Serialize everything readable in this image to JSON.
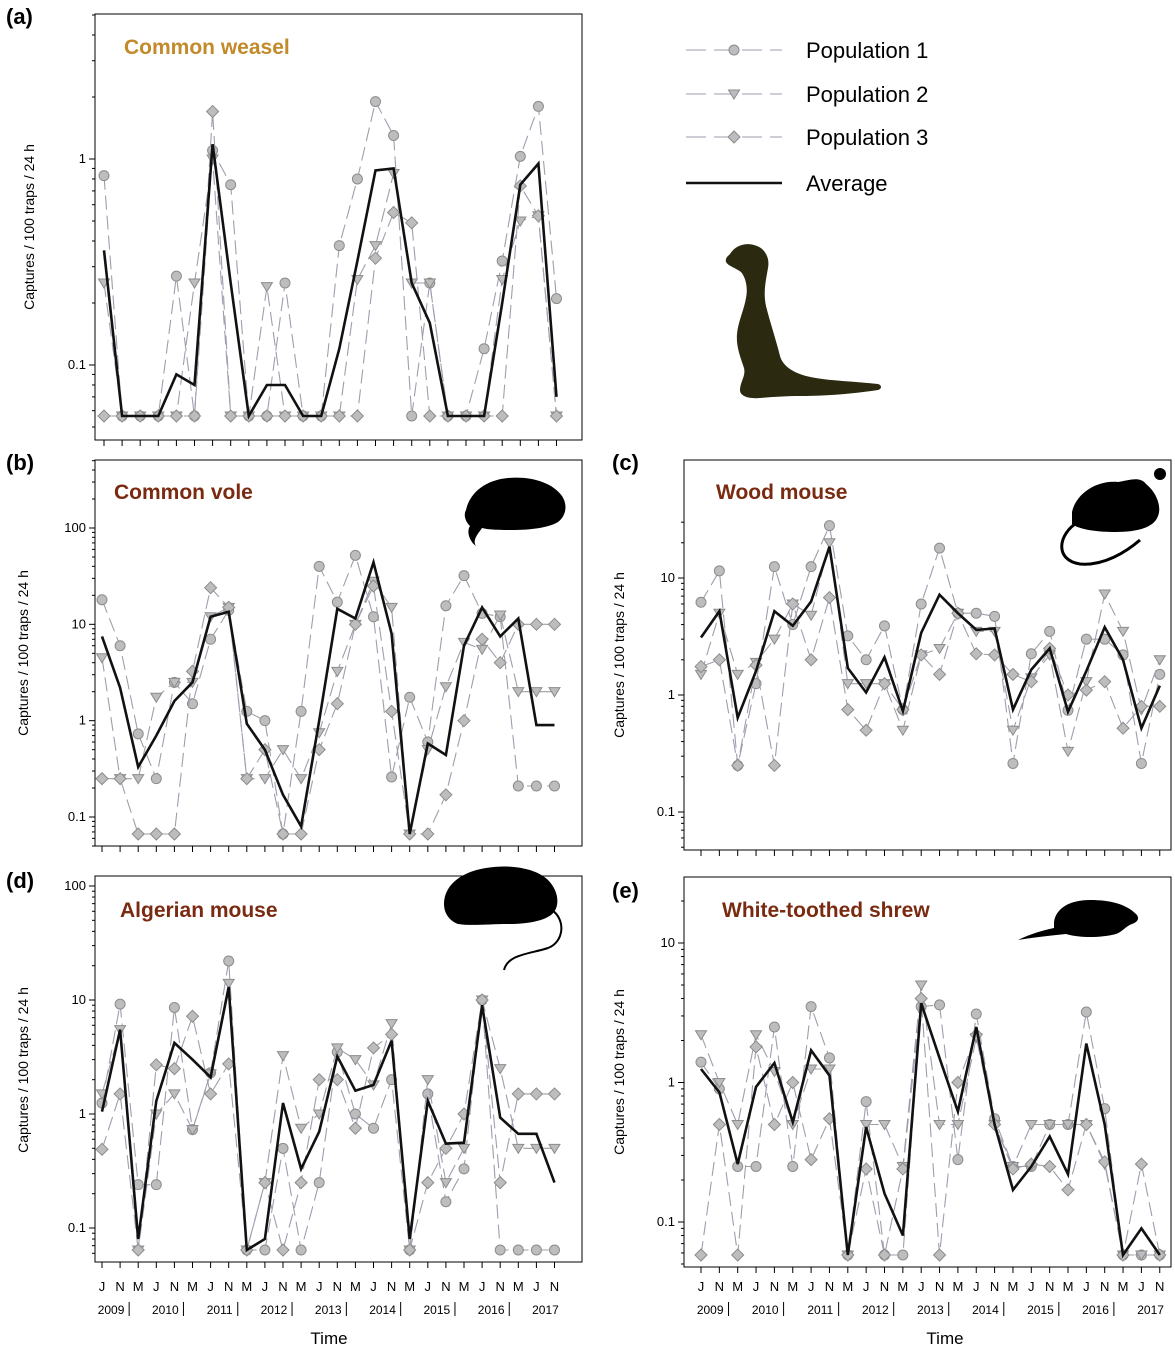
{
  "figure": {
    "x_axis_title": "Time"
  },
  "legend": {
    "entries": [
      {
        "label": "Population 1",
        "marker": "circle",
        "style": "dashed"
      },
      {
        "label": "Population 2",
        "marker": "triangle-down",
        "style": "dashed"
      },
      {
        "label": "Population 3",
        "marker": "diamond",
        "style": "dashed"
      },
      {
        "label": "Average",
        "marker": "none",
        "style": "solid"
      }
    ]
  },
  "colors": {
    "population": "#9e9eae",
    "marker_fill": "#bdbdbd",
    "marker_stroke": "#8c8c8c",
    "average": "#111111",
    "silhouette": "#000000",
    "weasel_silhouette": "#2b2a10"
  },
  "chart_data": [
    {
      "id": "a",
      "panel_label": "(a)",
      "title": "Common weasel",
      "title_color": "#c28a2b",
      "type": "line",
      "y_scale": "log",
      "ylabel": "Captures / 100 traps / 24 h",
      "ylim": [
        0.05,
        5.0
      ],
      "y_ticks": [
        0.1,
        1
      ],
      "y_tick_labels": [
        "0.1",
        "1"
      ],
      "silhouette": "weasel-icon",
      "x": [
        "J 2009",
        "N 2009",
        "M 2010",
        "J 2010",
        "N 2010",
        "M 2011",
        "J 2011",
        "N 2011",
        "M 2012",
        "J 2012",
        "N 2012",
        "M 2013",
        "J 2013",
        "N 2013",
        "M 2014",
        "J 2014",
        "N 2014",
        "M 2015",
        "J 2015",
        "N 2015",
        "M 2016",
        "J 2016",
        "N 2016",
        "M 2017",
        "J 2017",
        "N 2017"
      ],
      "series": [
        {
          "name": "Population 1",
          "values": [
            0.83,
            0.05,
            0.05,
            0.05,
            0.27,
            0.05,
            1.1,
            0.75,
            0.05,
            0.05,
            0.25,
            0.05,
            0.05,
            0.38,
            0.8,
            1.9,
            1.3,
            0.05,
            0.25,
            0.05,
            0.05,
            0.12,
            0.32,
            1.03,
            1.8,
            0.21
          ]
        },
        {
          "name": "Population 2",
          "values": [
            0.25,
            0.05,
            0.05,
            0.05,
            0.05,
            0.25,
            1.0,
            0.05,
            0.05,
            0.24,
            0.05,
            0.05,
            0.05,
            0.05,
            0.26,
            0.38,
            0.85,
            0.25,
            0.25,
            0.05,
            0.05,
            0.05,
            0.26,
            0.5,
            0.53,
            0.05
          ]
        },
        {
          "name": "Population 3",
          "values": [
            0.05,
            0.05,
            0.05,
            0.05,
            0.05,
            0.05,
            1.7,
            0.05,
            0.05,
            0.05,
            0.05,
            0.05,
            0.05,
            0.05,
            0.05,
            0.33,
            0.55,
            0.49,
            0.05,
            0.05,
            0.05,
            0.05,
            0.05,
            0.74,
            0.53,
            0.05
          ]
        },
        {
          "name": "Average",
          "values": [
            0.36,
            0.05,
            0.05,
            0.05,
            0.09,
            0.08,
            1.18,
            0.25,
            0.05,
            0.08,
            0.08,
            0.05,
            0.05,
            0.12,
            0.32,
            0.88,
            0.9,
            0.25,
            0.16,
            0.05,
            0.05,
            0.05,
            0.2,
            0.75,
            0.95,
            0.07
          ]
        }
      ]
    },
    {
      "id": "b",
      "panel_label": "(b)",
      "title": "Common vole",
      "title_color": "#7a2a10",
      "type": "line",
      "y_scale": "log",
      "ylabel": "Captures / 100 traps / 24 h",
      "ylim": [
        0.05,
        500
      ],
      "y_ticks": [
        0.1,
        1,
        10,
        100
      ],
      "y_tick_labels": [
        "0.1",
        "1",
        "10",
        "100"
      ],
      "silhouette": "vole-icon",
      "x": [
        "J 2009",
        "N 2009",
        "M 2010",
        "J 2010",
        "N 2010",
        "M 2011",
        "J 2011",
        "N 2011",
        "M 2012",
        "J 2012",
        "N 2012",
        "M 2013",
        "J 2013",
        "N 2013",
        "M 2014",
        "J 2014",
        "N 2014",
        "M 2015",
        "J 2015",
        "N 2015",
        "M 2016",
        "J 2016",
        "N 2016",
        "M 2017",
        "J 2017",
        "N 2017"
      ],
      "series": [
        {
          "name": "Population 1",
          "values": [
            18,
            6,
            0.73,
            0.25,
            2.5,
            1.5,
            7,
            14,
            1.25,
            1,
            0.05,
            1.25,
            40,
            17,
            52,
            12,
            0.26,
            1.75,
            0.6,
            15.6,
            32,
            13,
            12,
            0.21,
            0.21,
            0.21
          ]
        },
        {
          "name": "Population 2",
          "values": [
            4.5,
            0.25,
            0.25,
            1.75,
            2.5,
            2.5,
            12,
            15,
            0.25,
            0.25,
            0.5,
            0.25,
            0.75,
            3.25,
            10,
            28,
            15,
            0.05,
            0.5,
            2.25,
            6.5,
            5.5,
            12.5,
            2,
            2,
            2
          ]
        },
        {
          "name": "Population 3",
          "values": [
            0.25,
            0.25,
            0.05,
            0.05,
            0.05,
            3.25,
            24,
            15,
            0.25,
            0.5,
            0.05,
            0.05,
            0.5,
            1.5,
            10,
            25,
            1.25,
            0.05,
            0.05,
            0.17,
            1,
            7,
            4,
            10,
            10,
            10
          ]
        },
        {
          "name": "Average",
          "values": [
            7.5,
            2.2,
            0.33,
            0.7,
            1.6,
            2.5,
            12,
            13.5,
            0.93,
            0.5,
            0.17,
            0.08,
            1,
            14.5,
            11.5,
            44,
            8,
            0.05,
            0.58,
            0.44,
            6,
            15,
            7.5,
            11.5,
            0.9,
            0.9
          ]
        }
      ]
    },
    {
      "id": "c",
      "panel_label": "(c)",
      "title": "Wood mouse",
      "title_color": "#7a2a10",
      "type": "line",
      "y_scale": "log",
      "ylabel": "Captures / 100 traps / 24 h",
      "ylim": [
        0.04,
        35
      ],
      "y_ticks": [
        0.1,
        1,
        10
      ],
      "y_tick_labels": [
        "0.1",
        "1",
        "10"
      ],
      "silhouette": "mouse-icon",
      "x": [
        "J 2009",
        "N 2009",
        "M 2010",
        "J 2010",
        "N 2010",
        "M 2011",
        "J 2011",
        "N 2011",
        "M 2012",
        "J 2012",
        "N 2012",
        "M 2013",
        "J 2013",
        "N 2013",
        "M 2014",
        "J 2014",
        "N 2014",
        "M 2015",
        "J 2015",
        "N 2015",
        "M 2016",
        "J 2016",
        "N 2016",
        "M 2017",
        "J 2017",
        "N 2017"
      ],
      "series": [
        {
          "name": "Population 1",
          "values": [
            6.2,
            11.5,
            0.25,
            1.25,
            12.5,
            4,
            12.5,
            28,
            3.2,
            2,
            3.9,
            0.75,
            6,
            18,
            5,
            5,
            4.7,
            0.26,
            2.25,
            3.5,
            0.74,
            3,
            3,
            2.2,
            0.26,
            1.5
          ]
        },
        {
          "name": "Population 2",
          "values": [
            1.5,
            5,
            1.5,
            1.9,
            3,
            6,
            4.8,
            20,
            1.25,
            1.25,
            1.25,
            0.5,
            2.2,
            2.5,
            5,
            3.5,
            3.5,
            0.5,
            1.4,
            2.2,
            0.33,
            1.3,
            7.3,
            3.5,
            0.75,
            2
          ]
        },
        {
          "name": "Population 3",
          "values": [
            1.75,
            2,
            0.25,
            1.8,
            0.25,
            6,
            2,
            6.8,
            0.75,
            0.5,
            1.25,
            0.75,
            2.2,
            1.5,
            5,
            2.25,
            2.2,
            1.5,
            1.3,
            2.5,
            1,
            1.1,
            1.3,
            0.52,
            0.8,
            0.8
          ]
        },
        {
          "name": "Average",
          "values": [
            3.1,
            5.2,
            0.64,
            1.6,
            5.2,
            3.9,
            6.3,
            18.5,
            1.7,
            1.05,
            2.1,
            0.73,
            3.4,
            7.2,
            5,
            3.6,
            3.7,
            0.75,
            1.65,
            2.5,
            0.72,
            1.6,
            3.8,
            2,
            0.52,
            1.2
          ]
        }
      ]
    },
    {
      "id": "d",
      "panel_label": "(d)",
      "title": "Algerian mouse",
      "title_color": "#7a2a10",
      "type": "line",
      "y_scale": "log",
      "ylabel": "Captures / 100 traps / 24 h",
      "ylim": [
        0.05,
        100
      ],
      "y_ticks": [
        0.1,
        1,
        10,
        100
      ],
      "y_tick_labels": [
        "0.1",
        "1",
        "10",
        "100"
      ],
      "silhouette": "rat-icon",
      "x": [
        "J 2009",
        "N 2009",
        "M 2010",
        "J 2010",
        "N 2010",
        "M 2011",
        "J 2011",
        "N 2011",
        "M 2012",
        "J 2012",
        "N 2012",
        "M 2013",
        "J 2013",
        "N 2013",
        "M 2014",
        "J 2014",
        "N 2014",
        "M 2015",
        "J 2015",
        "N 2015",
        "M 2016",
        "J 2016",
        "N 2016",
        "M 2017",
        "J 2017",
        "N 2017"
      ],
      "series": [
        {
          "name": "Population 1",
          "values": [
            1.25,
            9.2,
            0.24,
            0.24,
            8.6,
            0.73,
            2.3,
            22,
            0.05,
            0.05,
            0.5,
            0.05,
            0.25,
            3.5,
            1,
            0.75,
            2,
            0.05,
            1.5,
            0.17,
            0.33,
            10,
            0.05,
            0.05,
            0.05,
            0.05
          ]
        },
        {
          "name": "Population 2",
          "values": [
            1.5,
            5.5,
            0.05,
            1,
            1.5,
            0.73,
            2.25,
            14,
            0.05,
            0.25,
            3.25,
            0.75,
            1,
            3.8,
            3,
            1.8,
            6.2,
            0.05,
            2,
            0.25,
            0.5,
            10,
            2.5,
            0.5,
            0.5,
            0.5
          ]
        },
        {
          "name": "Population 3",
          "values": [
            0.49,
            1.5,
            0.05,
            2.7,
            2.5,
            7.2,
            1.5,
            2.75,
            0.05,
            0.25,
            0.05,
            0.25,
            2,
            2,
            0.75,
            3.8,
            5,
            0.05,
            0.25,
            0.5,
            1,
            10,
            0.25,
            1.5,
            1.5,
            1.5
          ]
        },
        {
          "name": "Average",
          "values": [
            1.05,
            5.5,
            0.08,
            1.3,
            4.2,
            3,
            2.1,
            13,
            0.05,
            0.08,
            1.25,
            0.33,
            0.7,
            3.2,
            1.6,
            1.8,
            4.4,
            0.08,
            1.3,
            0.55,
            0.56,
            9,
            0.93,
            0.67,
            0.67,
            0.25
          ]
        }
      ]
    },
    {
      "id": "e",
      "panel_label": "(e)",
      "title": "White-toothed shrew",
      "title_color": "#7a2a10",
      "type": "line",
      "y_scale": "log",
      "ylabel": "Captures / 100 traps / 24 h",
      "ylim": [
        0.05,
        30
      ],
      "y_ticks": [
        0.1,
        1,
        10
      ],
      "y_tick_labels": [
        "0.1",
        "1",
        "10"
      ],
      "silhouette": "shrew-icon",
      "x": [
        "J 2009",
        "N 2009",
        "M 2010",
        "J 2010",
        "N 2010",
        "M 2011",
        "J 2011",
        "N 2011",
        "M 2012",
        "J 2012",
        "N 2012",
        "M 2013",
        "J 2013",
        "N 2013",
        "M 2014",
        "J 2014",
        "N 2014",
        "M 2015",
        "J 2015",
        "N 2015",
        "M 2016",
        "J 2016",
        "N 2016",
        "M 2017",
        "J 2017",
        "N 2017"
      ],
      "series": [
        {
          "name": "Population 1",
          "values": [
            1.4,
            0.9,
            0.25,
            0.25,
            2.5,
            0.25,
            3.5,
            1.5,
            0.05,
            0.73,
            0.05,
            0.05,
            3.5,
            3.6,
            0.28,
            3.1,
            0.55,
            0.25,
            0.25,
            0.5,
            0.5,
            3.2,
            0.65,
            0.05,
            0.05,
            0.05
          ]
        },
        {
          "name": "Population 2",
          "values": [
            2.2,
            1,
            0.5,
            2.2,
            1.2,
            0.5,
            1.25,
            1.25,
            0.05,
            0.5,
            0.5,
            0.25,
            5,
            0.5,
            0.5,
            2.1,
            0.5,
            0.25,
            0.5,
            0.5,
            0.5,
            0.5,
            0.26,
            0.05,
            0.05,
            0.05
          ]
        },
        {
          "name": "Population 3",
          "values": [
            0.05,
            0.5,
            0.05,
            1.8,
            0.5,
            1,
            0.28,
            0.55,
            0.05,
            0.24,
            0.05,
            0.24,
            4,
            0.05,
            1,
            2.2,
            0.5,
            0.24,
            0.26,
            0.25,
            0.17,
            0.5,
            0.27,
            0.05,
            0.26,
            0.05
          ]
        },
        {
          "name": "Average",
          "values": [
            1.25,
            0.85,
            0.26,
            0.93,
            1.38,
            0.52,
            1.7,
            1.12,
            0.05,
            0.48,
            0.16,
            0.08,
            3.7,
            1.5,
            0.62,
            2.5,
            0.5,
            0.17,
            0.25,
            0.41,
            0.22,
            1.9,
            0.5,
            0.05,
            0.09,
            0.05
          ]
        }
      ]
    }
  ]
}
